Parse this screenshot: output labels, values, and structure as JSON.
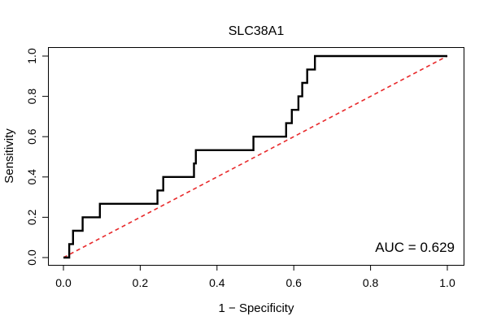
{
  "chart_data": {
    "type": "line",
    "title": "SLC38A1",
    "xlabel": "1 − Specificity",
    "ylabel": "Sensitivity",
    "xlim": [
      0,
      1
    ],
    "ylim": [
      0,
      1
    ],
    "xticks": [
      "0.0",
      "0.2",
      "0.4",
      "0.6",
      "0.8",
      "1.0"
    ],
    "yticks": [
      "0.0",
      "0.2",
      "0.4",
      "0.6",
      "0.8",
      "1.0"
    ],
    "grid": false,
    "annotation": "AUC = 0.629",
    "series": [
      {
        "style": "step",
        "color": "#000000",
        "x": [
          0.0,
          0.015,
          0.015,
          0.025,
          0.025,
          0.05,
          0.05,
          0.095,
          0.095,
          0.245,
          0.245,
          0.26,
          0.26,
          0.34,
          0.34,
          0.345,
          0.345,
          0.495,
          0.495,
          0.58,
          0.58,
          0.595,
          0.595,
          0.612,
          0.612,
          0.622,
          0.622,
          0.635,
          0.635,
          0.655,
          0.655,
          1.0
        ],
        "y": [
          0.0,
          0.0,
          0.067,
          0.067,
          0.133,
          0.133,
          0.2,
          0.2,
          0.267,
          0.267,
          0.333,
          0.333,
          0.4,
          0.4,
          0.467,
          0.467,
          0.533,
          0.533,
          0.6,
          0.6,
          0.667,
          0.667,
          0.733,
          0.733,
          0.8,
          0.8,
          0.867,
          0.867,
          0.933,
          0.933,
          1.0,
          1.0
        ]
      },
      {
        "style": "dashed",
        "color": "#e8292b",
        "x": [
          0,
          1
        ],
        "y": [
          0,
          1
        ]
      }
    ]
  }
}
